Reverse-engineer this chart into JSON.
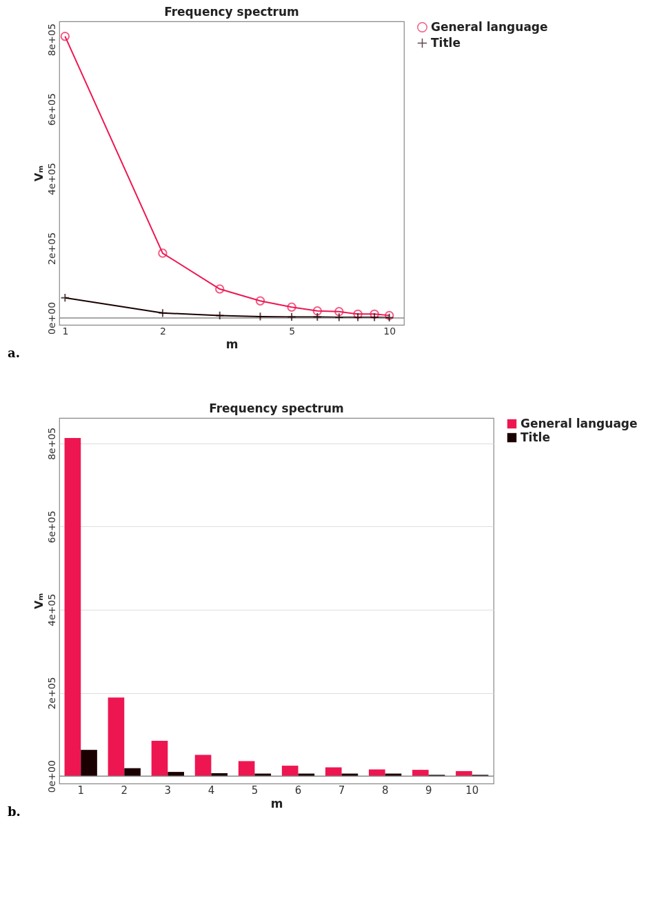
{
  "chart_data": [
    {
      "type": "line",
      "title": "Frequency spectrum",
      "xlabel": "m",
      "ylabel": "Vₘ",
      "log": "x",
      "x": [
        1,
        2,
        3,
        4,
        5,
        6,
        7,
        8,
        9,
        10
      ],
      "xlim": [
        0.96,
        11.1
      ],
      "xticks": [
        1,
        2,
        5,
        10
      ],
      "ylim": [
        -20000,
        852000
      ],
      "yticks": [
        {
          "value": 0,
          "label": "0e+00"
        },
        {
          "value": 200000,
          "label": "2e+05"
        },
        {
          "value": 400000,
          "label": "4e+05"
        },
        {
          "value": 600000,
          "label": "6e+05"
        },
        {
          "value": 800000,
          "label": "8e+05"
        }
      ],
      "series": [
        {
          "name": "General language",
          "color": "#ee1651",
          "marker": "circle",
          "values": [
            809000,
            186000,
            83000,
            49000,
            31000,
            20000,
            18000,
            11000,
            11000,
            7000
          ]
        },
        {
          "name": "Title",
          "color": "#1a0000",
          "marker": "cross",
          "values": [
            58000,
            14000,
            7000,
            4000,
            3000,
            3000,
            2000,
            2000,
            2000,
            1000
          ]
        }
      ],
      "ref_lines": [
        {
          "axis": "y",
          "value": 0,
          "color": "#888888"
        }
      ],
      "grid": false,
      "legend": "top right",
      "annotations": [
        "a."
      ]
    },
    {
      "type": "bar",
      "title": "Frequency spectrum",
      "xlabel": "m",
      "ylabel": "Vₘ",
      "categories": [
        "1",
        "2",
        "3",
        "4",
        "5",
        "6",
        "7",
        "8",
        "9",
        "10"
      ],
      "ylim": [
        -18000,
        861000
      ],
      "yticks": [
        {
          "value": 0,
          "label": "0e+00"
        },
        {
          "value": 200000,
          "label": "2e+05"
        },
        {
          "value": 400000,
          "label": "4e+05"
        },
        {
          "value": 600000,
          "label": "6e+05"
        },
        {
          "value": 800000,
          "label": "8e+05"
        }
      ],
      "series": [
        {
          "name": "General language",
          "color": "#ee1651",
          "values": [
            813000,
            189000,
            85000,
            51000,
            36000,
            25000,
            21000,
            16000,
            15000,
            12000
          ]
        },
        {
          "name": "Title",
          "color": "#1a0000",
          "values": [
            63000,
            19000,
            10000,
            7000,
            6000,
            6000,
            6000,
            6000,
            3000,
            3000
          ]
        }
      ],
      "ref_lines": [
        {
          "axis": "y",
          "value": 0,
          "color": "#888888"
        }
      ],
      "grid": "y",
      "legend": "top right",
      "annotations": [
        "b."
      ]
    }
  ]
}
